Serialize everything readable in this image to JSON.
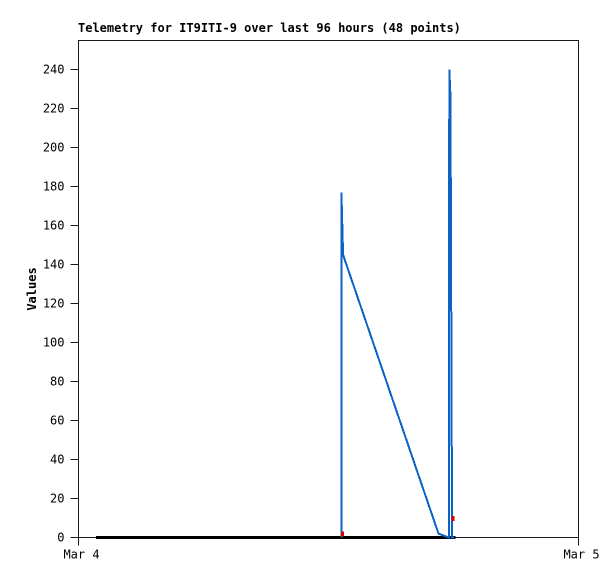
{
  "chart_data": {
    "type": "line",
    "title": "Telemetry for IT9ITI-9 over last 96 hours (48 points)",
    "ylabel": "Values",
    "grid": "off",
    "legend": "none",
    "axis_color": "#1a1a1a",
    "x_axis": {
      "range_hours": [
        0,
        24
      ],
      "ticks": [
        {
          "hour": 0,
          "label": "Mar 4"
        },
        {
          "hour": 24,
          "label": "Mar 5"
        }
      ]
    },
    "y_axis": {
      "range": [
        0,
        255
      ],
      "ticks": [
        {
          "value": 0,
          "label": "0"
        },
        {
          "value": 20,
          "label": "20"
        },
        {
          "value": 40,
          "label": "40"
        },
        {
          "value": 60,
          "label": "60"
        },
        {
          "value": 80,
          "label": "80"
        },
        {
          "value": 100,
          "label": "100"
        },
        {
          "value": 120,
          "label": "120"
        },
        {
          "value": 140,
          "label": "140"
        },
        {
          "value": 160,
          "label": "160"
        },
        {
          "value": 180,
          "label": "180"
        },
        {
          "value": 200,
          "label": "200"
        },
        {
          "value": 220,
          "label": "220"
        },
        {
          "value": 240,
          "label": "240"
        }
      ]
    },
    "series": [
      {
        "name": "zero-baseline",
        "color": "#000000",
        "width": 3,
        "points_h_v": [
          [
            0.85,
            0
          ],
          [
            18.1,
            0
          ]
        ]
      },
      {
        "name": "telemetry-values",
        "color": "#0b63c6",
        "width": 2,
        "points_h_v": [
          [
            12.62,
            0
          ],
          [
            12.62,
            177
          ],
          [
            12.7,
            145
          ],
          [
            17.28,
            2
          ],
          [
            17.78,
            0
          ],
          [
            17.8,
            240
          ],
          [
            17.86,
            225
          ],
          [
            17.88,
            121
          ],
          [
            17.9,
            113
          ],
          [
            17.93,
            0
          ],
          [
            18.05,
            0
          ]
        ]
      }
    ],
    "markers": {
      "name": "data-point-markers",
      "color": "#e00000",
      "points_h_v": [
        [
          12.66,
          2
        ],
        [
          17.98,
          10
        ]
      ]
    }
  }
}
